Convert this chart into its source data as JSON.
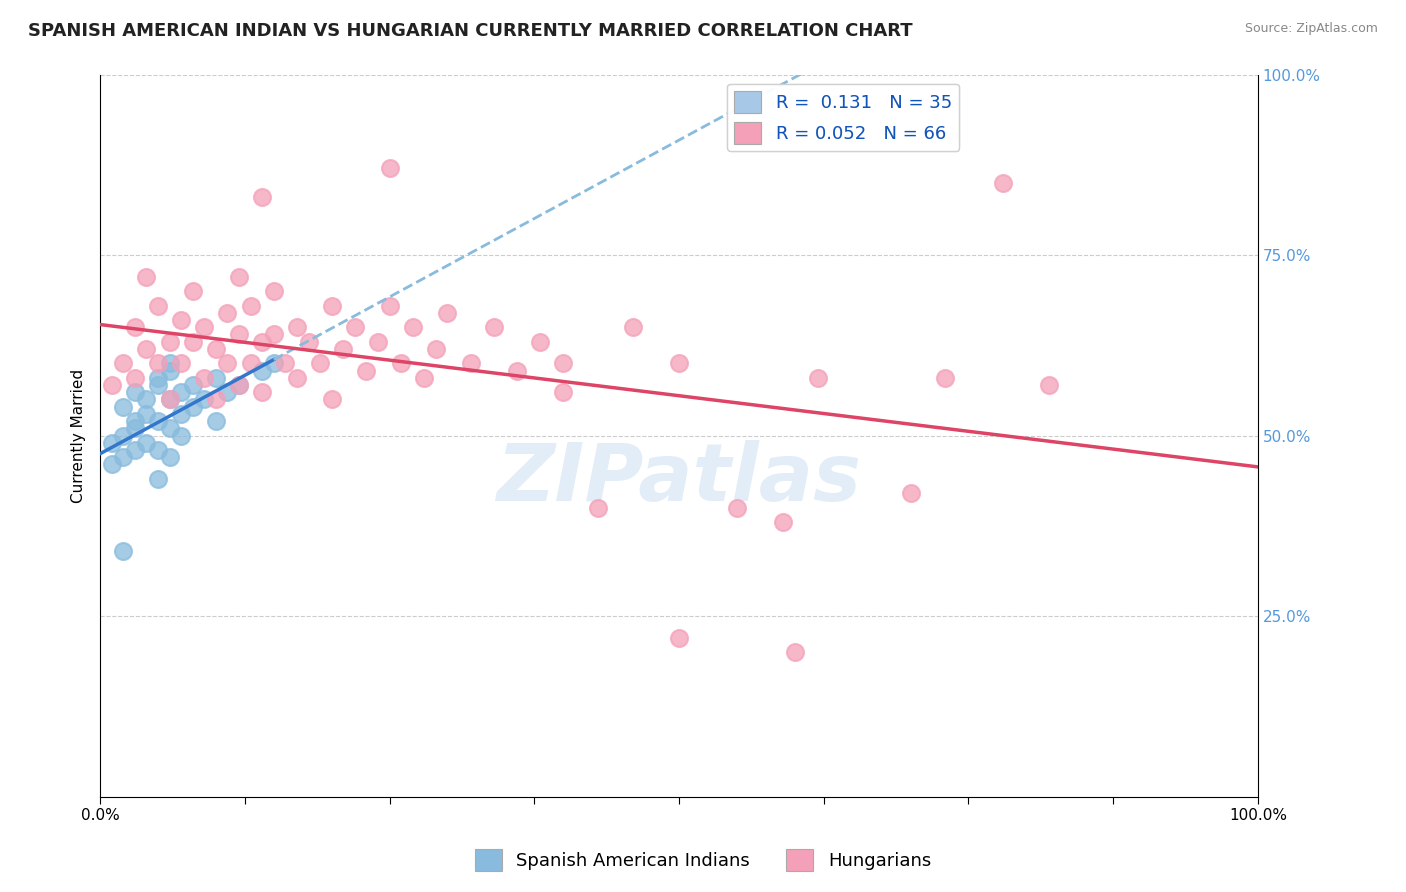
{
  "title": "SPANISH AMERICAN INDIAN VS HUNGARIAN CURRENTLY MARRIED CORRELATION CHART",
  "source": "Source: ZipAtlas.com",
  "ylabel": "Currently Married",
  "watermark": "ZIPatlas",
  "legend_entries": [
    {
      "label": "Spanish American Indians",
      "color": "#a8c8e8",
      "R": 0.131,
      "N": 35
    },
    {
      "label": "Hungarians",
      "color": "#f4a0b8",
      "R": 0.052,
      "N": 66
    }
  ],
  "right_yticks": [
    25.0,
    50.0,
    75.0,
    100.0
  ],
  "right_ytick_color": "#5599dd",
  "blue_scatter_x": [
    0.01,
    0.01,
    0.02,
    0.02,
    0.02,
    0.03,
    0.03,
    0.03,
    0.03,
    0.04,
    0.04,
    0.04,
    0.05,
    0.05,
    0.05,
    0.05,
    0.05,
    0.06,
    0.06,
    0.06,
    0.06,
    0.07,
    0.07,
    0.07,
    0.08,
    0.08,
    0.09,
    0.1,
    0.1,
    0.11,
    0.12,
    0.14,
    0.15,
    0.02,
    0.06
  ],
  "blue_scatter_y": [
    0.49,
    0.46,
    0.5,
    0.54,
    0.47,
    0.52,
    0.48,
    0.56,
    0.51,
    0.53,
    0.55,
    0.49,
    0.57,
    0.52,
    0.48,
    0.44,
    0.58,
    0.55,
    0.51,
    0.47,
    0.59,
    0.53,
    0.56,
    0.5,
    0.57,
    0.54,
    0.55,
    0.58,
    0.52,
    0.56,
    0.57,
    0.59,
    0.6,
    0.34,
    0.6
  ],
  "pink_scatter_x": [
    0.01,
    0.02,
    0.03,
    0.03,
    0.04,
    0.04,
    0.05,
    0.05,
    0.06,
    0.06,
    0.07,
    0.07,
    0.08,
    0.08,
    0.09,
    0.09,
    0.1,
    0.1,
    0.11,
    0.11,
    0.12,
    0.12,
    0.12,
    0.13,
    0.13,
    0.14,
    0.14,
    0.15,
    0.15,
    0.16,
    0.17,
    0.17,
    0.18,
    0.19,
    0.2,
    0.21,
    0.22,
    0.23,
    0.24,
    0.25,
    0.26,
    0.27,
    0.28,
    0.29,
    0.3,
    0.32,
    0.34,
    0.36,
    0.38,
    0.4,
    0.43,
    0.46,
    0.5,
    0.55,
    0.59,
    0.62,
    0.7,
    0.73,
    0.78,
    0.82,
    0.14,
    0.2,
    0.25,
    0.4,
    0.5,
    0.6
  ],
  "pink_scatter_y": [
    0.57,
    0.6,
    0.65,
    0.58,
    0.62,
    0.72,
    0.68,
    0.6,
    0.63,
    0.55,
    0.66,
    0.6,
    0.7,
    0.63,
    0.65,
    0.58,
    0.62,
    0.55,
    0.67,
    0.6,
    0.64,
    0.57,
    0.72,
    0.68,
    0.6,
    0.63,
    0.56,
    0.7,
    0.64,
    0.6,
    0.65,
    0.58,
    0.63,
    0.6,
    0.68,
    0.62,
    0.65,
    0.59,
    0.63,
    0.68,
    0.6,
    0.65,
    0.58,
    0.62,
    0.67,
    0.6,
    0.65,
    0.59,
    0.63,
    0.6,
    0.4,
    0.65,
    0.6,
    0.4,
    0.38,
    0.58,
    0.42,
    0.58,
    0.85,
    0.57,
    0.83,
    0.55,
    0.87,
    0.56,
    0.22,
    0.2
  ],
  "blue_color": "#88bbdd",
  "pink_color": "#f4a0b8",
  "blue_solid_color": "#3377cc",
  "blue_dash_color": "#88bbdd",
  "pink_line_color": "#dd4466",
  "grid_color": "#cccccc",
  "background_color": "#ffffff",
  "title_fontsize": 13,
  "axis_fontsize": 11,
  "legend_fontsize": 13
}
